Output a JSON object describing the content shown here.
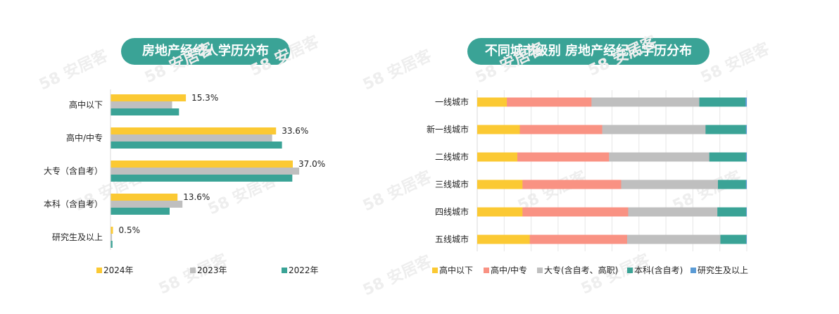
{
  "titles": {
    "left": "房地产经纪人学历分布",
    "right": "不同城市级别 房地产经纪人学历分布"
  },
  "watermark": "58 安居客",
  "chart_data": [
    {
      "type": "bar",
      "orientation": "horizontal",
      "title": "房地产经纪人学历分布",
      "categories": [
        "高中以下",
        "高中/中专",
        "大专（含自考）",
        "本科（含自考）",
        "研究生及以上"
      ],
      "series": [
        {
          "name": "2024年",
          "color": "#fbc933",
          "values": [
            15.3,
            33.6,
            37.0,
            13.6,
            0.5
          ],
          "labels": [
            "15.3%",
            "33.6%",
            "37.0%",
            "13.6%",
            "0.5%"
          ]
        },
        {
          "name": "2023年",
          "color": "#bfbfbf",
          "values": [
            12.5,
            32.8,
            38.3,
            14.6,
            0.3
          ]
        },
        {
          "name": "2022年",
          "color": "#3aa396",
          "values": [
            13.9,
            34.8,
            36.9,
            12.0,
            0.4
          ]
        }
      ],
      "xlim": [
        0,
        40
      ],
      "legend": "bottom"
    },
    {
      "type": "bar",
      "orientation": "horizontal",
      "stacked": true,
      "title": "不同城市级别 房地产经纪人学历分布",
      "categories": [
        "一线城市",
        "新一线城市",
        "二线城市",
        "三线城市",
        "四线城市",
        "五线城市"
      ],
      "series": [
        {
          "name": "高中以下",
          "color": "#fbc933",
          "values": [
            11.0,
            15.8,
            14.9,
            16.8,
            16.8,
            19.5
          ]
        },
        {
          "name": "高中/中专",
          "color": "#f99283",
          "values": [
            31.4,
            30.6,
            34.0,
            36.6,
            39.2,
            36.1
          ]
        },
        {
          "name": "大专(含自考、高职)",
          "color": "#bfbfbf",
          "values": [
            40.0,
            38.3,
            37.2,
            35.9,
            33.1,
            34.6
          ]
        },
        {
          "name": "本科(含自考)",
          "color": "#3aa396",
          "values": [
            17.1,
            15.0,
            13.6,
            10.4,
            10.7,
            9.6
          ]
        },
        {
          "name": "研究生及以上",
          "color": "#5b9bd5",
          "values": [
            0.5,
            0.3,
            0.3,
            0.3,
            0.2,
            0.2
          ]
        }
      ],
      "xlim": [
        0,
        100
      ],
      "legend": "bottom"
    }
  ]
}
